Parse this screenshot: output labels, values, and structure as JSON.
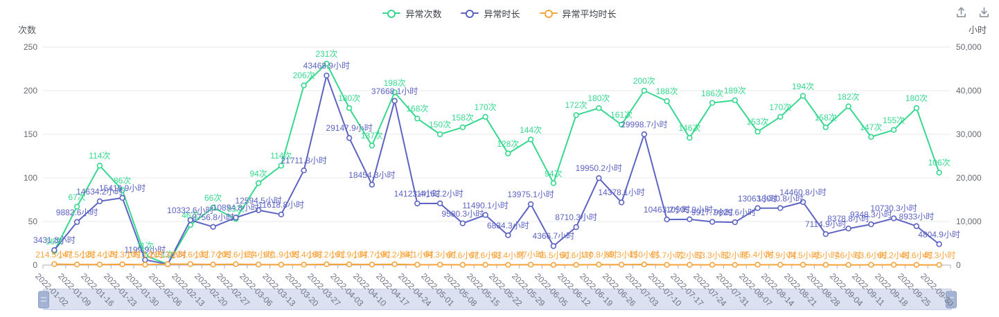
{
  "legend": {
    "items": [
      {
        "label": "异常次数",
        "color": "#35d88e"
      },
      {
        "label": "异常时长",
        "color": "#5c63c2"
      },
      {
        "label": "异常平均时长",
        "color": "#f8a33b"
      }
    ]
  },
  "toolbar": {
    "icons": [
      {
        "name": "save-as-image-icon"
      },
      {
        "name": "download-icon"
      }
    ]
  },
  "axes": {
    "left": {
      "name": "次数",
      "ticks": [
        "250",
        "200",
        "150",
        "100",
        "50",
        "0"
      ],
      "max": 250
    },
    "right": {
      "name": "小时",
      "ticks": [
        "50,000",
        "40,000",
        "30,000",
        "20,000",
        "10,000",
        "0"
      ],
      "max": 50000
    }
  },
  "chart_data": {
    "type": "line",
    "title": "",
    "xlabel": "",
    "legend_position": "top",
    "grid": true,
    "ylim_left": [
      0,
      250
    ],
    "ylim_right": [
      0,
      50000
    ],
    "categories": [
      "2022-01-02",
      "2022-01-09",
      "2022-01-16",
      "2022-01-23",
      "2022-01-30",
      "2022-02-06",
      "2022-02-13",
      "2022-02-20",
      "2022-02-27",
      "2022-03-06",
      "2022-03-13",
      "2022-03-20",
      "2022-03-27",
      "2022-04-03",
      "2022-04-10",
      "2022-04-17",
      "2022-04-24",
      "2022-05-01",
      "2022-05-08",
      "2022-05-15",
      "2022-05-22",
      "2022-05-29",
      "2022-06-05",
      "2022-06-12",
      "2022-06-19",
      "2022-06-26",
      "2022-07-03",
      "2022-07-10",
      "2022-07-17",
      "2022-07-24",
      "2022-07-31",
      "2022-08-07",
      "2022-08-14",
      "2022-08-21",
      "2022-08-28",
      "2022-09-04",
      "2022-09-11",
      "2022-09-18",
      "2022-09-25",
      "2022-09-30"
    ],
    "series": [
      {
        "name": "异常次数",
        "color": "#35d88e",
        "axis": "left",
        "unit": "次",
        "values": [
          16,
          67,
          114,
          86,
          11,
          1,
          46,
          66,
          53,
          94,
          114,
          206,
          231,
          180,
          137,
          198,
          168,
          150,
          158,
          170,
          128,
          144,
          94,
          172,
          180,
          161,
          200,
          188,
          146,
          186,
          189,
          153,
          170,
          194,
          158,
          182,
          147,
          155,
          180,
          106
        ]
      },
      {
        "name": "异常时长",
        "color": "#5c63c2",
        "axis": "right",
        "unit": "小时",
        "values": [
          3431.8,
          9882.6,
          14634.2,
          15419.9,
          1199.9,
          215.3,
          10332.6,
          8756.8,
          10894.8,
          12594.5,
          11618.8,
          21711.8,
          43468.9,
          29147.9,
          18454.3,
          37668.1,
          14123.4,
          14152.2,
          9580.3,
          11490.1,
          6834.3,
          13975.1,
          4366.7,
          8710.3,
          19950.2,
          14378.1,
          29998.7,
          10463.2,
          10505.9,
          9917.7,
          9829.6,
          13063,
          13080.8,
          14460.8,
          7114.9,
          8378.8,
          9348.3,
          10730.3,
          8933,
          4804.9
        ]
      },
      {
        "name": "异常平均时长",
        "color": "#f8a33b",
        "axis": "right",
        "unit": "小时",
        "values": [
          214.5,
          147.5,
          128.4,
          179.3,
          109.1,
          215.3,
          224.6,
          132.7,
          205.6,
          134,
          101.9,
          105.4,
          188.2,
          161.9,
          134.7,
          190.2,
          84.1,
          94.3,
          60.6,
          67.6,
          53.4,
          97,
          46.5,
          50.6,
          110.8,
          89.3,
          150,
          55.7,
          72,
          53.3,
          52,
          85.4,
          76.9,
          74.5,
          45,
          46,
          63.6,
          69.2,
          49.6,
          45.3
        ]
      }
    ]
  }
}
